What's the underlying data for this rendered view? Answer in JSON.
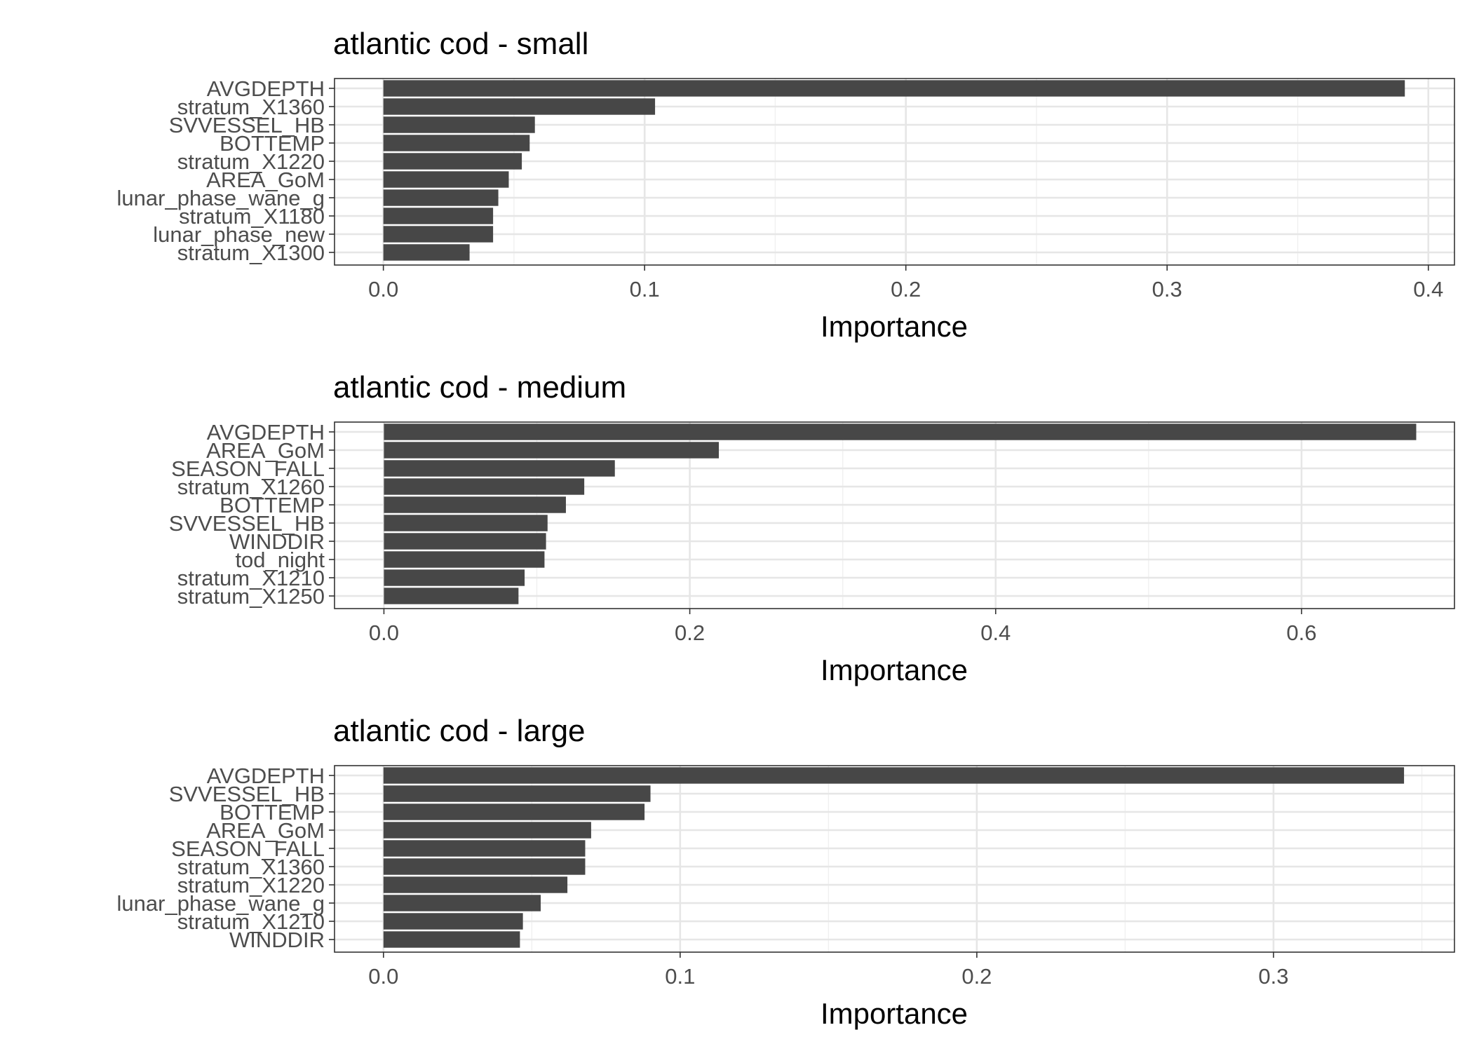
{
  "chart_data": [
    {
      "type": "bar",
      "orientation": "horizontal",
      "title": "atlantic cod - small",
      "xlabel": "Importance",
      "ylabel": "",
      "xlim": [
        -0.0187,
        0.41
      ],
      "xticks": [
        0.0,
        0.1,
        0.2,
        0.3,
        0.4
      ],
      "xtick_labels": [
        "0.0",
        "0.1",
        "0.2",
        "0.3",
        "0.4"
      ],
      "grid": true,
      "bar_color": "#474747",
      "categories": [
        "AVGDEPTH",
        "stratum_X1360",
        "SVVESSEL_HB",
        "BOTTEMP",
        "stratum_X1220",
        "AREA_GoM",
        "lunar_phase_wane_g",
        "stratum_X1180",
        "lunar_phase_new",
        "stratum_X1300"
      ],
      "values": [
        0.391,
        0.104,
        0.058,
        0.056,
        0.053,
        0.048,
        0.044,
        0.042,
        0.042,
        0.033
      ]
    },
    {
      "type": "bar",
      "orientation": "horizontal",
      "title": "atlantic cod - medium",
      "xlabel": "Importance",
      "ylabel": "",
      "xlim": [
        -0.0323,
        0.7
      ],
      "xticks": [
        0.0,
        0.2,
        0.4,
        0.6
      ],
      "xtick_labels": [
        "0.0",
        "0.2",
        "0.4",
        "0.6"
      ],
      "grid": true,
      "bar_color": "#474747",
      "categories": [
        "AVGDEPTH",
        "AREA_GoM",
        "SEASON_FALL",
        "stratum_X1260",
        "BOTTEMP",
        "SVVESSEL_HB",
        "WINDDIR",
        "tod_night",
        "stratum_X1210",
        "stratum_X1250"
      ],
      "values": [
        0.675,
        0.219,
        0.151,
        0.131,
        0.119,
        0.107,
        0.106,
        0.105,
        0.092,
        0.088
      ]
    },
    {
      "type": "bar",
      "orientation": "horizontal",
      "title": "atlantic cod - large",
      "xlabel": "Importance",
      "ylabel": "",
      "xlim": [
        -0.0165,
        0.361
      ],
      "xticks": [
        0.0,
        0.1,
        0.2,
        0.3
      ],
      "xtick_labels": [
        "0.0",
        "0.1",
        "0.2",
        "0.3"
      ],
      "grid": true,
      "bar_color": "#474747",
      "categories": [
        "AVGDEPTH",
        "SVVESSEL_HB",
        "BOTTEMP",
        "AREA_GoM",
        "SEASON_FALL",
        "stratum_X1360",
        "stratum_X1220",
        "lunar_phase_wane_g",
        "stratum_X1210",
        "WINDDIR"
      ],
      "values": [
        0.344,
        0.09,
        0.088,
        0.07,
        0.068,
        0.068,
        0.062,
        0.053,
        0.047,
        0.046
      ]
    }
  ]
}
